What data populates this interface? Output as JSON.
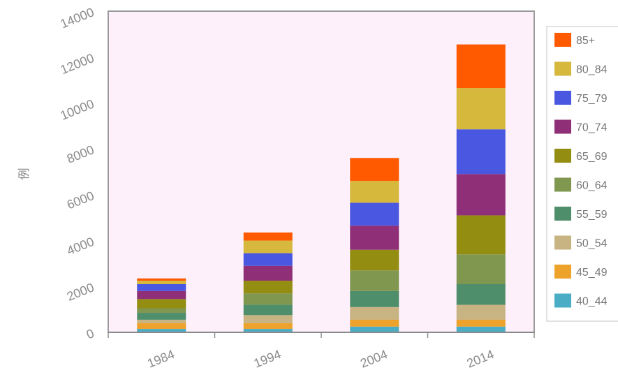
{
  "chart_data": {
    "type": "bar",
    "stacked": true,
    "ylabel": "例",
    "ylim": [
      0,
      14000
    ],
    "y_ticks": [
      "0",
      "2000",
      "4000",
      "6000",
      "8000",
      "10000",
      "12000",
      "14000"
    ],
    "categories": [
      "1984",
      "1994",
      "2004",
      "2014"
    ],
    "legend_position": "right",
    "plot_background": "#fdf0fb",
    "series": [
      {
        "name": "40_44",
        "color": "#4bacc6",
        "values": [
          150,
          150,
          250,
          250
        ]
      },
      {
        "name": "45_49",
        "color": "#eca22b",
        "values": [
          250,
          250,
          300,
          300
        ]
      },
      {
        "name": "50_54",
        "color": "#c8b383",
        "values": [
          150,
          350,
          550,
          650
        ]
      },
      {
        "name": "55_59",
        "color": "#4f8e6b",
        "values": [
          300,
          450,
          700,
          900
        ]
      },
      {
        "name": "60_64",
        "color": "#7f974f",
        "values": [
          200,
          500,
          900,
          1300
        ]
      },
      {
        "name": "65_69",
        "color": "#938d12",
        "values": [
          400,
          550,
          900,
          1700
        ]
      },
      {
        "name": "70_74",
        "color": "#8e2f78",
        "values": [
          350,
          650,
          1050,
          1800
        ]
      },
      {
        "name": "75_79",
        "color": "#4a57e0",
        "values": [
          300,
          550,
          1000,
          1950
        ]
      },
      {
        "name": "80_84",
        "color": "#d6b83d",
        "values": [
          150,
          550,
          950,
          1800
        ]
      },
      {
        "name": "85+",
        "color": "#ff5a00",
        "values": [
          100,
          350,
          1000,
          1900
        ]
      }
    ]
  }
}
